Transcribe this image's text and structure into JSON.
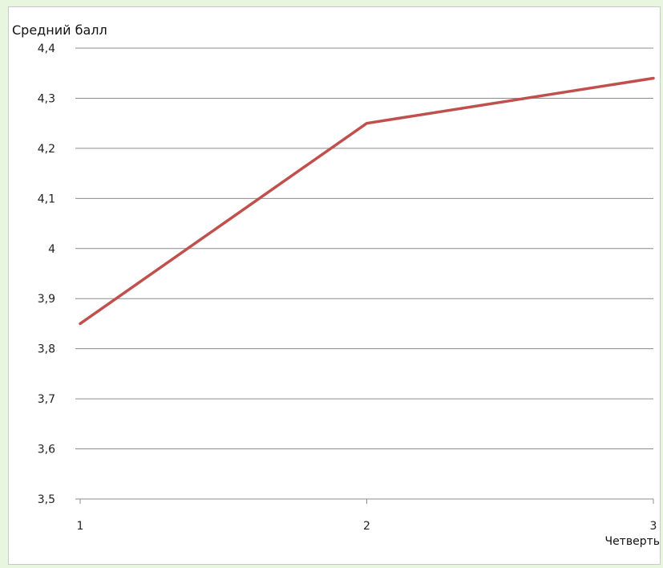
{
  "chart_data": {
    "type": "line",
    "ylabel": "Средний балл",
    "xlabel": "Четверть",
    "x": [
      1,
      2,
      3
    ],
    "x_tick_labels": [
      "1",
      "2",
      "3"
    ],
    "ylim": [
      3.5,
      4.4
    ],
    "y_ticks": [
      3.5,
      3.6,
      3.7,
      3.8,
      3.9,
      4.0,
      4.1,
      4.2,
      4.3,
      4.4
    ],
    "y_tick_labels": [
      "3,5",
      "3,6",
      "3,7",
      "3,8",
      "3,9",
      "4",
      "4,1",
      "4,2",
      "4,3",
      "4,4"
    ],
    "series": [
      {
        "values": [
          3.85,
          4.25,
          4.34
        ],
        "color": "#c0504d"
      }
    ],
    "grid": true,
    "legend": "none"
  }
}
